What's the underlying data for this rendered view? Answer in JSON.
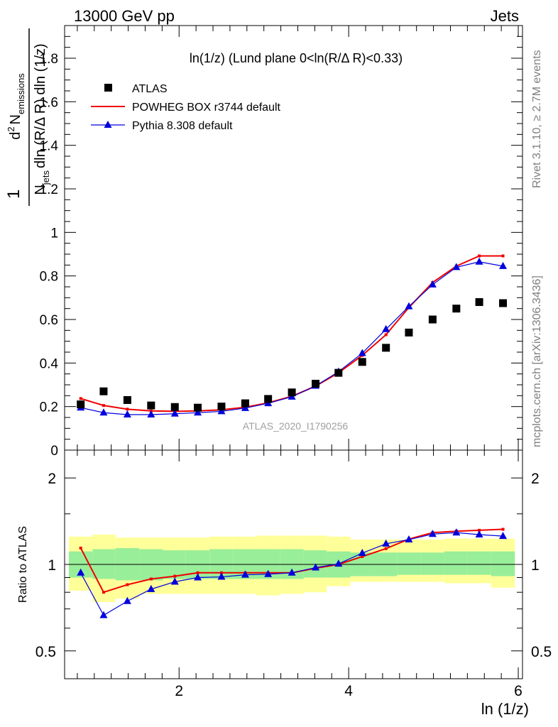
{
  "header": {
    "energy_label": "13000 GeV pp",
    "process_label": "Jets"
  },
  "side_labels": {
    "rivet": "Rivet 3.1.10, ≥ 2.7M events",
    "mcplots": "mcplots.cern.ch [arXiv:1306.3436]"
  },
  "colors": {
    "atlas": "#000000",
    "powheg": "#ee0000",
    "pythia": "#0000dd",
    "band_inner": "#99ee99",
    "band_outer": "#ffff99"
  },
  "chart_data": [
    {
      "type": "scatter",
      "title": "ln(1/z) (Lund plane 0<ln(R/Δ R)<0.33)",
      "analysis_label": "ATLAS_2020_I1790256",
      "ylabel": {
        "frac": "1",
        "num_d": "d",
        "num_sup": "2",
        "num_n": "N",
        "num_sub": "emissions",
        "den_n": "N",
        "den_sub": "jets",
        "den_rest": "dln (R/Δ R) dln (1/z)"
      },
      "xlim": [
        0.65,
        6.05
      ],
      "ylim": [
        0,
        1.95
      ],
      "yticks": [
        0,
        0.2,
        0.4,
        0.6,
        0.8,
        1,
        1.2,
        1.4,
        1.6,
        1.8
      ],
      "ytick_labels": [
        "0",
        "0.2",
        "0.4",
        "0.6",
        "0.8",
        "1",
        "1.2",
        "1.4",
        "1.6",
        "1.8"
      ],
      "legend_position": "top-left",
      "x": [
        0.84,
        1.11,
        1.39,
        1.67,
        1.95,
        2.22,
        2.5,
        2.78,
        3.05,
        3.33,
        3.61,
        3.88,
        4.16,
        4.44,
        4.71,
        4.99,
        5.27,
        5.54,
        5.82
      ],
      "series": [
        {
          "name": "ATLAS",
          "marker": "square",
          "values": [
            0.21,
            0.27,
            0.23,
            0.205,
            0.198,
            0.195,
            0.2,
            0.215,
            0.235,
            0.265,
            0.305,
            0.355,
            0.405,
            0.47,
            0.54,
            0.6,
            0.65,
            0.68,
            0.675
          ]
        },
        {
          "name": "POWHEG BOX r3744 default",
          "marker": "line",
          "values": [
            0.237,
            0.205,
            0.188,
            0.18,
            0.178,
            0.18,
            0.185,
            0.197,
            0.217,
            0.247,
            0.294,
            0.355,
            0.435,
            0.53,
            0.655,
            0.77,
            0.845,
            0.892,
            0.892
          ]
        },
        {
          "name": "Pythia 8.308 default",
          "marker": "triangle",
          "values": [
            0.195,
            0.172,
            0.163,
            0.163,
            0.167,
            0.172,
            0.178,
            0.193,
            0.215,
            0.245,
            0.295,
            0.36,
            0.445,
            0.555,
            0.66,
            0.76,
            0.84,
            0.865,
            0.845
          ]
        }
      ]
    },
    {
      "type": "line",
      "ylabel": "Ratio to ATLAS",
      "xlabel": "ln (1/z)",
      "xlim": [
        0.65,
        6.05
      ],
      "ylim": [
        0.4,
        2.5
      ],
      "log_y": true,
      "xticks": [
        2,
        4,
        6
      ],
      "xtick_labels": [
        "2",
        "4",
        "6"
      ],
      "yticks": [
        0.5,
        1,
        2
      ],
      "ytick_labels": [
        "0.5",
        "1",
        "2"
      ],
      "bin_edges": [
        0.7,
        0.98,
        1.25,
        1.53,
        1.81,
        2.08,
        2.36,
        2.64,
        2.91,
        3.19,
        3.47,
        3.74,
        4.02,
        4.3,
        4.57,
        4.85,
        5.13,
        5.4,
        5.68,
        5.96
      ],
      "band_inner": {
        "low": [
          0.9,
          0.89,
          0.88,
          0.88,
          0.89,
          0.89,
          0.89,
          0.89,
          0.89,
          0.89,
          0.9,
          0.9,
          0.91,
          0.91,
          0.92,
          0.92,
          0.92,
          0.92,
          0.91
        ],
        "high": [
          1.11,
          1.13,
          1.14,
          1.13,
          1.12,
          1.12,
          1.13,
          1.13,
          1.13,
          1.13,
          1.12,
          1.11,
          1.1,
          1.1,
          1.1,
          1.1,
          1.11,
          1.11,
          1.11
        ]
      },
      "band_outer": {
        "low": [
          0.81,
          0.74,
          0.76,
          0.79,
          0.79,
          0.79,
          0.79,
          0.79,
          0.78,
          0.79,
          0.8,
          0.84,
          0.87,
          0.87,
          0.87,
          0.87,
          0.86,
          0.86,
          0.83
        ]
      },
      "band_outer_high": [
        1.25,
        1.27,
        1.24,
        1.24,
        1.24,
        1.24,
        1.25,
        1.25,
        1.26,
        1.26,
        1.26,
        1.25,
        1.22,
        1.22,
        1.22,
        1.22,
        1.23,
        1.23,
        1.23
      ],
      "series": [
        {
          "name": "POWHEG BOX r3744 default",
          "values": [
            1.14,
            0.8,
            0.85,
            0.89,
            0.91,
            0.935,
            0.935,
            0.935,
            0.935,
            0.935,
            0.97,
            1.0,
            1.065,
            1.135,
            1.225,
            1.29,
            1.305,
            1.315,
            1.325
          ]
        },
        {
          "name": "Pythia 8.308 default",
          "values": [
            0.935,
            0.665,
            0.745,
            0.82,
            0.87,
            0.9,
            0.905,
            0.92,
            0.925,
            0.935,
            0.975,
            1.005,
            1.095,
            1.18,
            1.22,
            1.275,
            1.29,
            1.27,
            1.255
          ]
        }
      ]
    }
  ]
}
